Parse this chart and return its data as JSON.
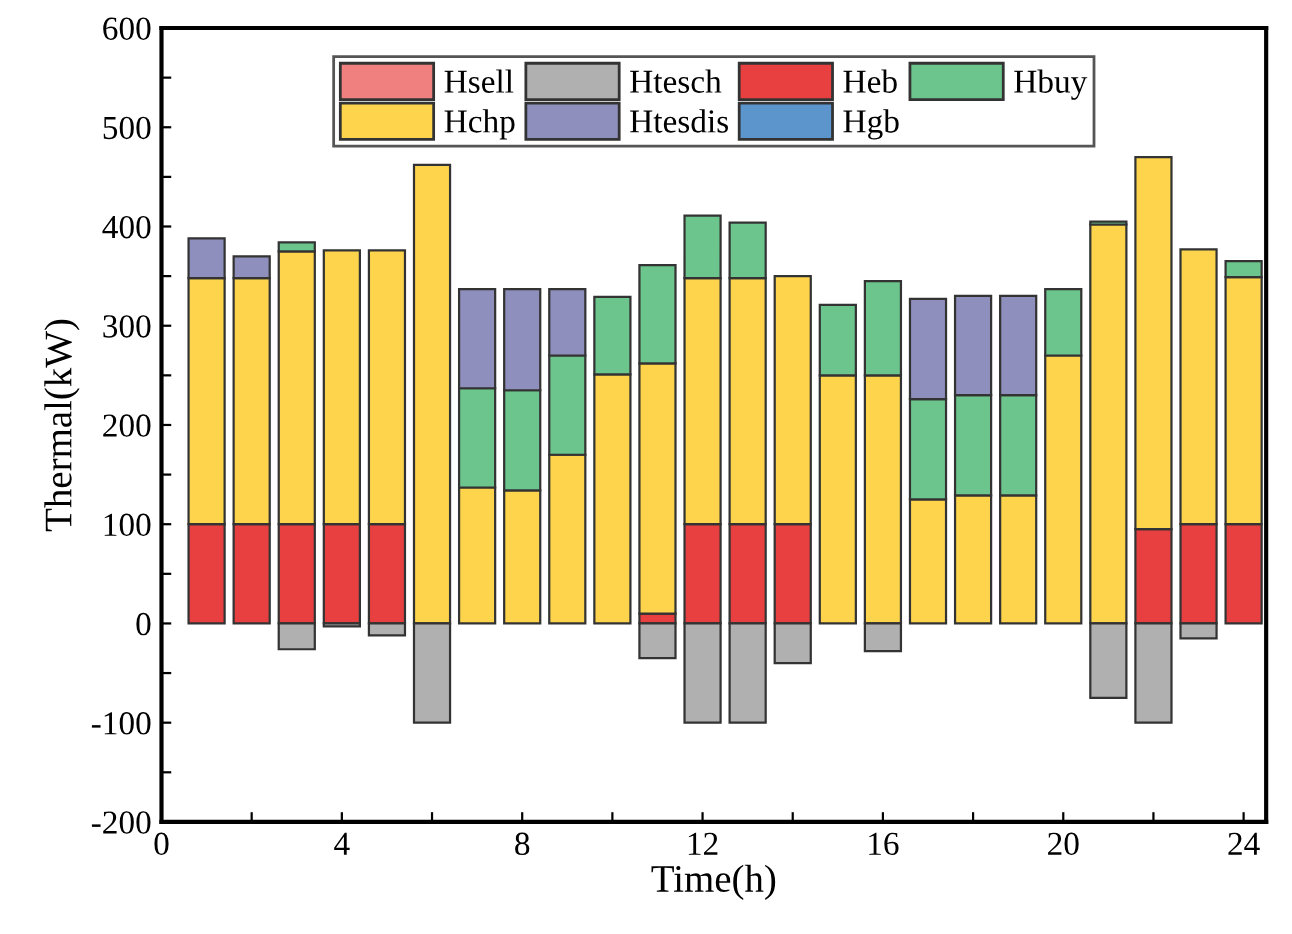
{
  "chart_data": {
    "type": "bar",
    "stacked": true,
    "xlabel": "Time(h)",
    "ylabel": "Thermal(kW)",
    "x": [
      1,
      2,
      3,
      4,
      5,
      6,
      7,
      8,
      9,
      10,
      11,
      12,
      13,
      14,
      15,
      16,
      17,
      18,
      19,
      20,
      21,
      22,
      23,
      24
    ],
    "series": [
      {
        "name": "Hsell",
        "color": "#f08080",
        "values": [
          0,
          0,
          0,
          0,
          0,
          0,
          0,
          0,
          0,
          0,
          0,
          0,
          0,
          0,
          0,
          0,
          0,
          0,
          0,
          0,
          0,
          0,
          0,
          0
        ]
      },
      {
        "name": "Heb",
        "color": "#e84040",
        "values": [
          100,
          100,
          100,
          100,
          100,
          0,
          0,
          0,
          0,
          0,
          10,
          100,
          100,
          100,
          0,
          0,
          0,
          0,
          0,
          0,
          0,
          95,
          100,
          100
        ]
      },
      {
        "name": "Hchp",
        "color": "#fdd44c",
        "values": [
          248,
          248,
          275,
          276,
          276,
          462,
          137,
          134,
          170,
          251,
          252,
          248,
          248,
          250,
          250,
          250,
          125,
          129,
          129,
          270,
          402,
          375,
          277,
          249
        ]
      },
      {
        "name": "Hbuy",
        "color": "#6cc58c",
        "values": [
          0,
          0,
          9,
          0,
          0,
          0,
          100,
          101,
          100,
          78,
          99,
          63,
          56,
          0,
          71,
          95,
          101,
          101,
          101,
          67,
          3,
          0,
          0,
          16
        ]
      },
      {
        "name": "Htesdis",
        "color": "#8e8fbd",
        "values": [
          40,
          22,
          0,
          0,
          0,
          0,
          100,
          102,
          67,
          0,
          0,
          0,
          0,
          0,
          0,
          0,
          101,
          100,
          100,
          0,
          0,
          0,
          0,
          0
        ]
      },
      {
        "name": "Hgb",
        "color": "#5b95cc",
        "values": [
          0,
          0,
          0,
          0,
          0,
          0,
          0,
          0,
          0,
          0,
          0,
          0,
          0,
          0,
          0,
          0,
          0,
          0,
          0,
          0,
          0,
          0,
          0,
          0
        ]
      },
      {
        "name": "Htesch",
        "color": "#b0b0b0",
        "values": [
          0,
          0,
          -26,
          -3,
          -12,
          -100,
          0,
          0,
          0,
          0,
          -35,
          -100,
          -100,
          -40,
          0,
          -28,
          0,
          0,
          0,
          0,
          -75,
          -100,
          -15,
          0
        ]
      }
    ],
    "xlim": [
      0,
      24.5
    ],
    "xticks": [
      0,
      {
        "value": 2,
        "label": null
      },
      4,
      {
        "value": 6,
        "label": null
      },
      8,
      {
        "value": 10,
        "label": null
      },
      12,
      {
        "value": 14,
        "label": null
      },
      16,
      {
        "value": 18,
        "label": null
      },
      20,
      {
        "value": 22,
        "label": null
      },
      24
    ],
    "ylim": [
      -200,
      600
    ],
    "yticks": [
      -200,
      {
        "value": -150,
        "label": null
      },
      -100,
      {
        "value": -50,
        "label": null
      },
      0,
      {
        "value": 50,
        "label": null
      },
      100,
      {
        "value": 150,
        "label": null
      },
      200,
      {
        "value": 250,
        "label": null
      },
      300,
      {
        "value": 350,
        "label": null
      },
      400,
      {
        "value": 450,
        "label": null
      },
      500,
      {
        "value": 550,
        "label": null
      },
      600
    ],
    "grid": false,
    "legend": "top"
  }
}
